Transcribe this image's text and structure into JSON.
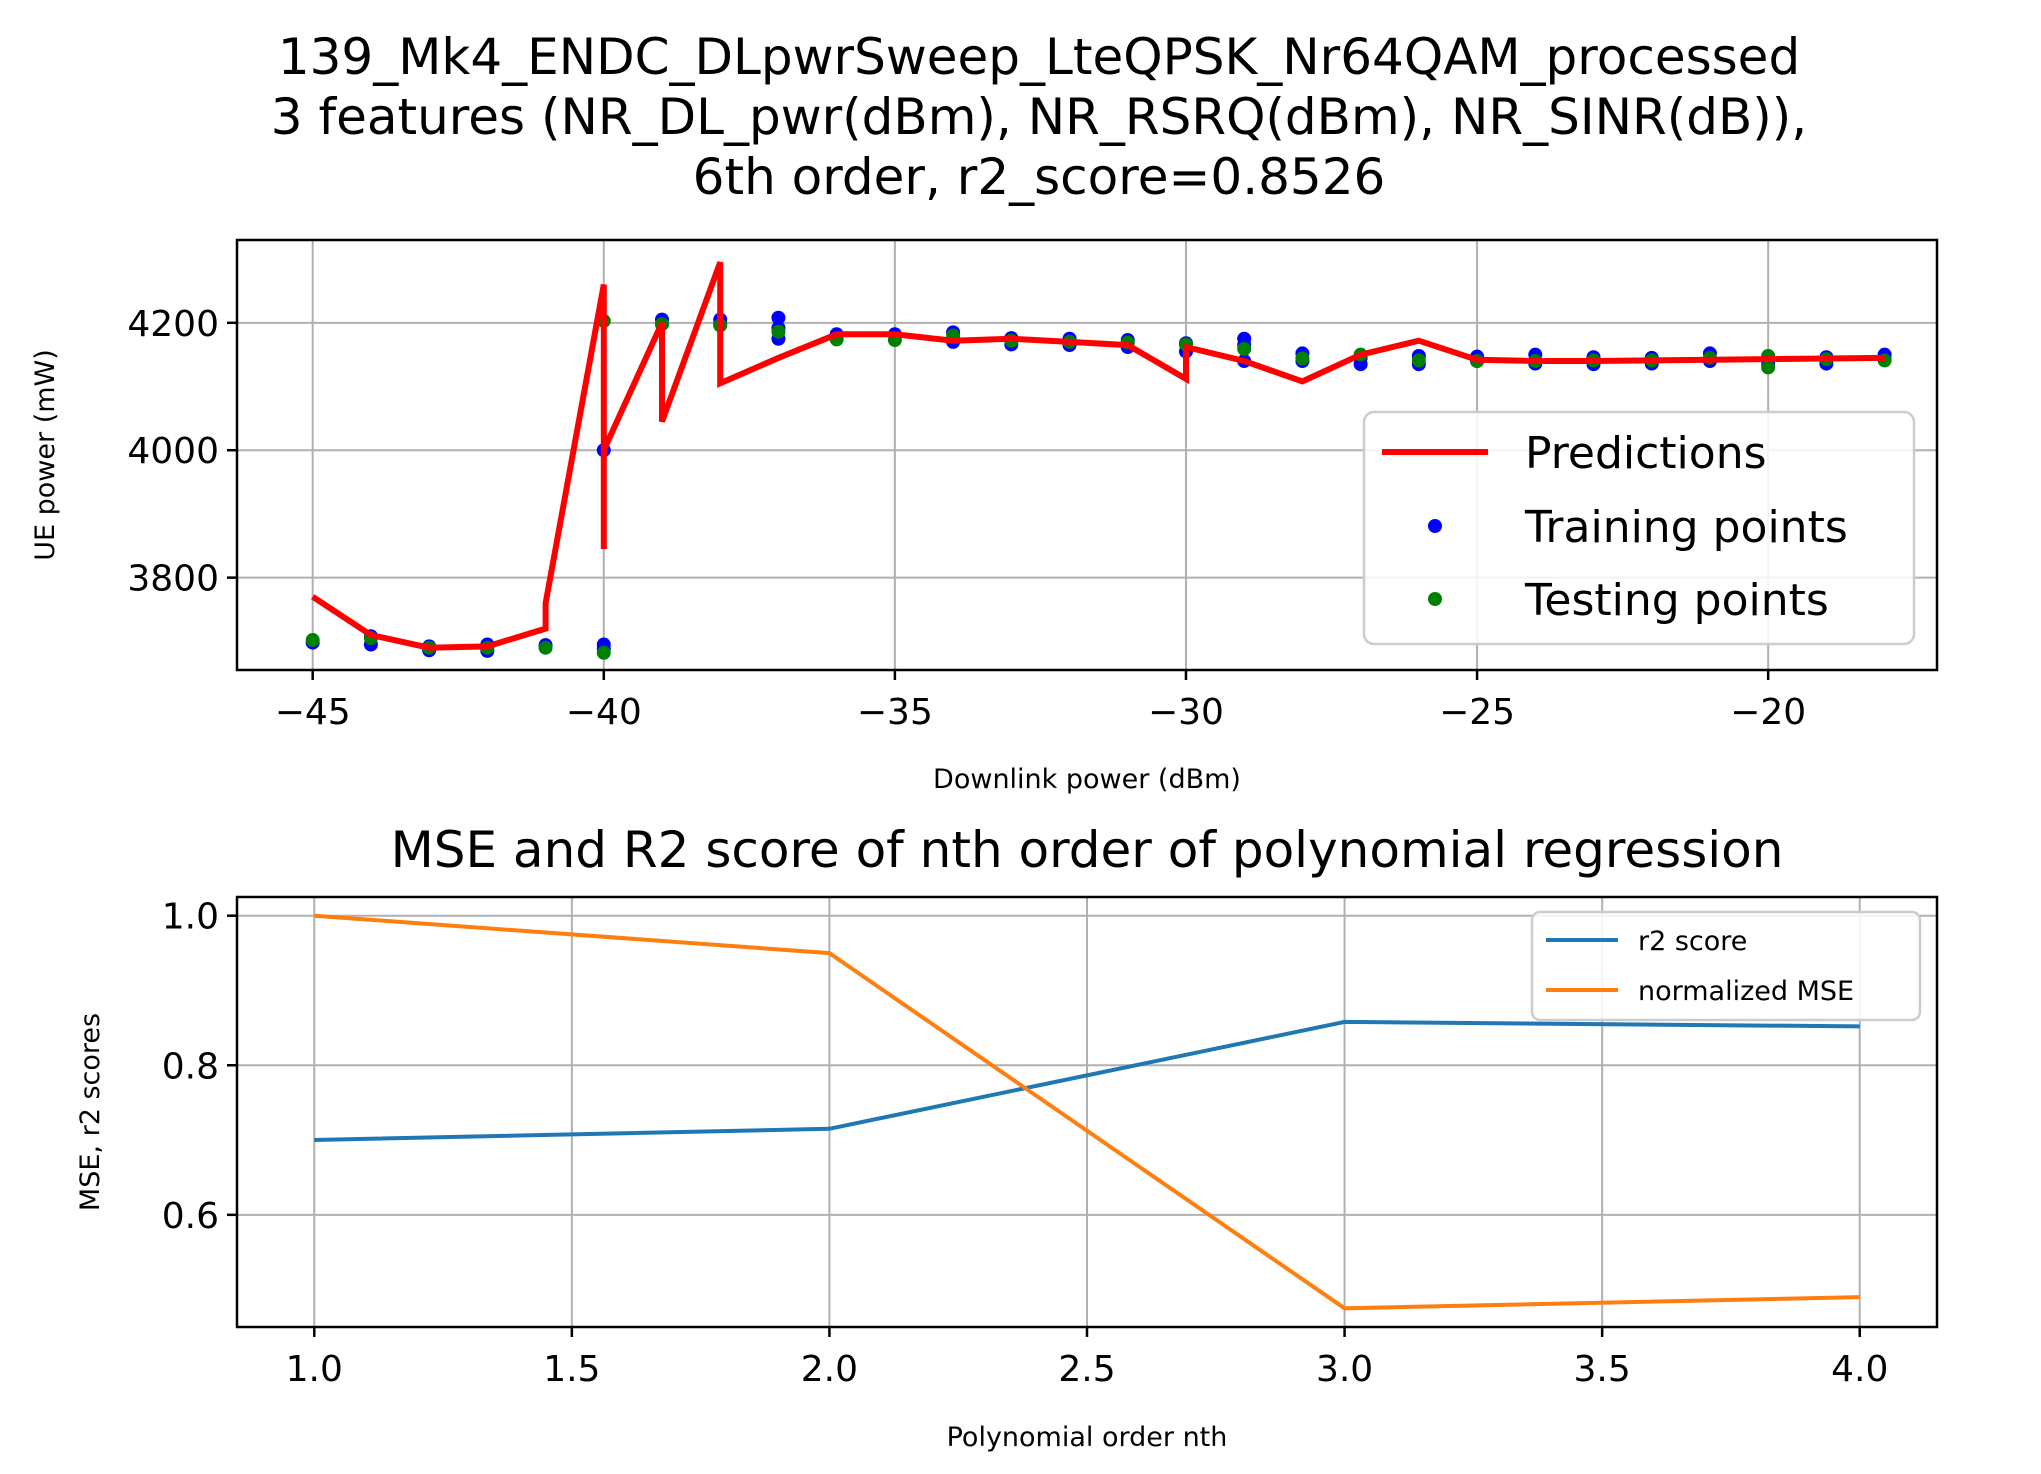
{
  "chart_data": [
    {
      "type": "line",
      "title": [
        "139_Mk4_ENDC_DLpwrSweep_LteQPSK_Nr64QAM_processed",
        "3 features (NR_DL_pwr(dBm), NR_RSRQ(dBm), NR_SINR(dB)),",
        "6th order, r2_score=0.8526"
      ],
      "xlabel": "Downlink power (dBm)",
      "ylabel": "UE power (mW)",
      "xlim": [
        -46.3,
        -17.1
      ],
      "ylim": [
        3655,
        4330
      ],
      "xticks": [
        -45,
        -40,
        -35,
        -30,
        -25,
        -20
      ],
      "xtick_labels": [
        "−45",
        "−40",
        "−35",
        "−30",
        "−25",
        "−20"
      ],
      "yticks": [
        3800,
        4000,
        4200
      ],
      "ytick_labels": [
        "3800",
        "4000",
        "4200"
      ],
      "grid": true,
      "legend_position": "center-right",
      "series": [
        {
          "name": "Predictions",
          "kind": "line",
          "color": "#ff0000",
          "x": [
            -45,
            -44,
            -43,
            -42,
            -41,
            -41,
            -40,
            -40,
            -40,
            -39,
            -39,
            -38,
            -38,
            -37,
            -36,
            -35,
            -34,
            -33,
            -32,
            -31,
            -30,
            -30,
            -29,
            -28,
            -27,
            -26,
            -25,
            -24,
            -23,
            -22,
            -21,
            -20,
            -19,
            -18
          ],
          "y": [
            3770,
            3710,
            3690,
            3692,
            3720,
            3760,
            4260,
            3845,
            4000,
            4200,
            4045,
            4295,
            4105,
            4145,
            4182,
            4182,
            4172,
            4175,
            4170,
            4165,
            4112,
            4162,
            4140,
            4108,
            4150,
            4172,
            4142,
            4140,
            4140,
            4141,
            4142,
            4143,
            4144,
            4145
          ]
        },
        {
          "name": "Training points",
          "kind": "scatter",
          "color": "#0000ff",
          "x": [
            -45,
            -44,
            -44,
            -43,
            -43,
            -42,
            -42,
            -41,
            -40,
            -40,
            -40,
            -39,
            -39,
            -38,
            -38,
            -37,
            -37,
            -37,
            -36,
            -35,
            -34,
            -34,
            -33,
            -33,
            -32,
            -32,
            -31,
            -31,
            -30,
            -30,
            -29,
            -29,
            -29,
            -28,
            -28,
            -27,
            -27,
            -26,
            -26,
            -25,
            -25,
            -24,
            -24,
            -23,
            -23,
            -22,
            -22,
            -21,
            -21,
            -20,
            -20,
            -19,
            -19,
            -18,
            -18
          ],
          "y": [
            3698,
            3708,
            3695,
            3692,
            3686,
            3695,
            3685,
            3694,
            4000,
            3695,
            3688,
            4205,
            4198,
            4205,
            4198,
            4208,
            4192,
            4175,
            4182,
            4182,
            4185,
            4170,
            4176,
            4166,
            4175,
            4165,
            4173,
            4162,
            4168,
            4155,
            4175,
            4165,
            4140,
            4152,
            4140,
            4145,
            4135,
            4148,
            4135,
            4147,
            4140,
            4150,
            4136,
            4146,
            4135,
            4145,
            4136,
            4152,
            4140,
            4145,
            4135,
            4146,
            4136,
            4150,
            4143
          ]
        },
        {
          "name": "Testing points",
          "kind": "scatter",
          "color": "#008000",
          "x": [
            -45,
            -44,
            -43,
            -42,
            -41,
            -40,
            -40,
            -39,
            -38,
            -37,
            -36,
            -35,
            -34,
            -33,
            -32,
            -31,
            -30,
            -29,
            -28,
            -27,
            -26,
            -25,
            -24,
            -23,
            -22,
            -21,
            -20,
            -20,
            -19,
            -18
          ],
          "y": [
            3702,
            3705,
            3690,
            3690,
            3690,
            4203,
            3682,
            4198,
            4196,
            4186,
            4174,
            4173,
            4180,
            4172,
            4170,
            4169,
            4166,
            4159,
            4144,
            4150,
            4141,
            4140,
            4140,
            4141,
            4141,
            4145,
            4148,
            4130,
            4143,
            4141
          ]
        }
      ]
    },
    {
      "type": "line",
      "title": "MSE and R2 score of nth order of polynomial regression",
      "xlabel": "Polynomial order nth",
      "ylabel": "MSE, r2 scores",
      "xlim": [
        0.85,
        4.15
      ],
      "ylim": [
        0.45,
        1.025
      ],
      "xticks": [
        1.0,
        1.5,
        2.0,
        2.5,
        3.0,
        3.5,
        4.0
      ],
      "xtick_labels": [
        "1.0",
        "1.5",
        "2.0",
        "2.5",
        "3.0",
        "3.5",
        "4.0"
      ],
      "yticks": [
        0.6,
        0.8,
        1.0
      ],
      "ytick_labels": [
        "0.6",
        "0.8",
        "1.0"
      ],
      "grid": true,
      "legend_position": "top-right",
      "series": [
        {
          "name": "r2 score",
          "color": "#1f77b4",
          "x": [
            1,
            2,
            3,
            4
          ],
          "y": [
            0.7,
            0.715,
            0.858,
            0.852
          ]
        },
        {
          "name": "normalized MSE",
          "color": "#ff7f0e",
          "x": [
            1,
            2,
            3,
            4
          ],
          "y": [
            1.0,
            0.95,
            0.475,
            0.49
          ]
        }
      ]
    }
  ]
}
